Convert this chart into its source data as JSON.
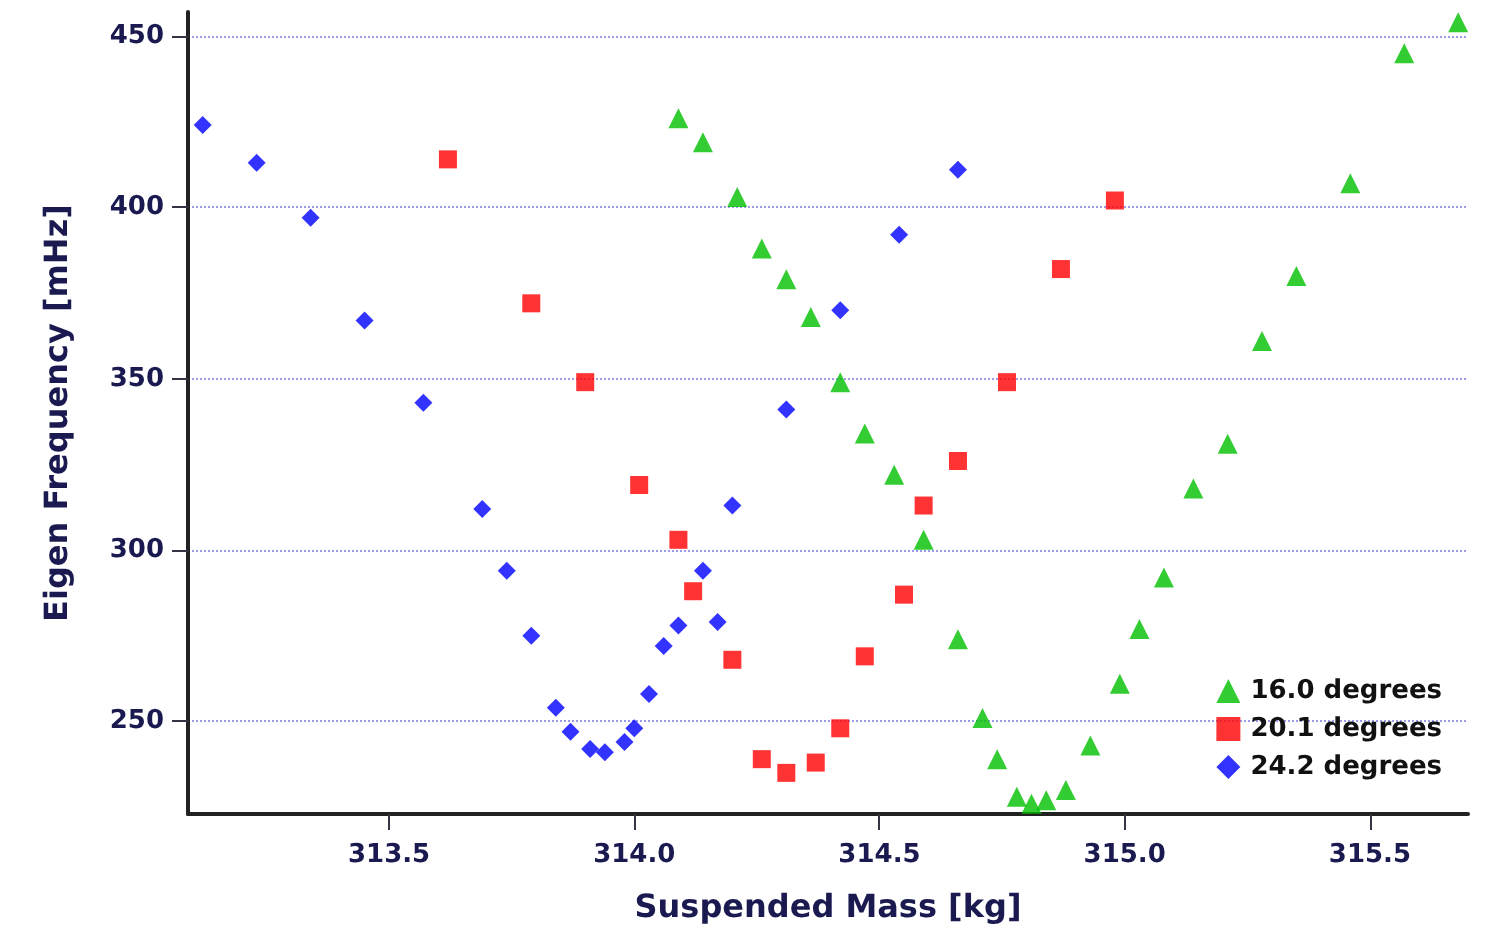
{
  "chart_data": {
    "type": "scatter",
    "xlabel": "Suspended Mass [kg]",
    "ylabel": "Eigen Frequency [mHz]",
    "xlim": [
      313.09,
      315.7
    ],
    "xticks": [
      313.5,
      {
        "value": 314,
        "label": "314.0"
      },
      314.5,
      {
        "value": 315,
        "label": "315.0"
      },
      315.5
    ],
    "ylim": [
      223,
      457
    ],
    "yticks": [
      250,
      300,
      350,
      400,
      450
    ],
    "grid": "y",
    "legend": "bottom right",
    "series": [
      {
        "name": "16.0 degrees",
        "color": "#00c000",
        "marker": "triangle",
        "x": [
          314.09,
          314.14,
          314.21,
          314.26,
          314.31,
          314.36,
          314.42,
          314.47,
          314.53,
          314.59,
          314.66,
          314.71,
          314.74,
          314.78,
          314.81,
          314.84,
          314.88,
          314.93,
          314.99,
          315.03,
          315.08,
          315.14,
          315.21,
          315.28,
          315.35,
          315.46,
          315.57,
          315.68
        ],
        "values": [
          426,
          419,
          403,
          388,
          379,
          368,
          349,
          334,
          322,
          303,
          274,
          251,
          239,
          228,
          226,
          227,
          230,
          243,
          261,
          277,
          292,
          318,
          331,
          361,
          380,
          407,
          445,
          454
        ]
      },
      {
        "name": "20.1 degrees",
        "color": "#ff0000",
        "marker": "square",
        "x": [
          313.62,
          313.79,
          313.9,
          314.01,
          314.09,
          314.12,
          314.2,
          314.26,
          314.31,
          314.37,
          314.42,
          314.47,
          314.55,
          314.59,
          314.66,
          314.76,
          314.87,
          314.98
        ],
        "values": [
          414,
          372,
          349,
          319,
          303,
          288,
          268,
          239,
          235,
          238,
          248,
          269,
          287,
          313,
          326,
          349,
          382,
          402
        ]
      },
      {
        "name": "24.2 degrees",
        "color": "#0000ff",
        "marker": "diamond",
        "x": [
          313.12,
          313.23,
          313.34,
          313.45,
          313.57,
          313.69,
          313.74,
          313.79,
          313.84,
          313.87,
          313.91,
          313.94,
          313.98,
          314.0,
          314.03,
          314.06,
          314.09,
          314.14,
          314.17,
          314.2,
          314.31,
          314.42,
          314.54,
          314.66
        ],
        "values": [
          424,
          413,
          397,
          367,
          343,
          312,
          294,
          275,
          254,
          247,
          242,
          241,
          244,
          248,
          258,
          272,
          278,
          294,
          279,
          313,
          341,
          370,
          392,
          411
        ]
      }
    ]
  }
}
